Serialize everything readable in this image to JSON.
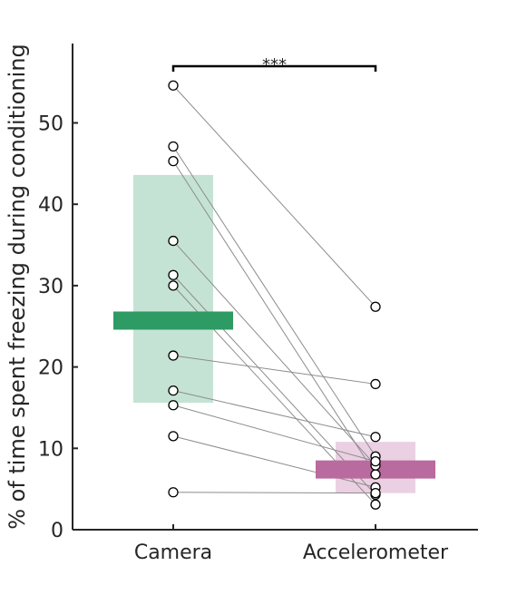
{
  "chart_data": {
    "type": "scatter",
    "title": "",
    "ylabel": "% of time spent freezing during conditioning",
    "xlabel": "",
    "categories": [
      "Camera",
      "Accelerometer"
    ],
    "ylim": [
      0,
      60
    ],
    "yticks": [
      0,
      10,
      20,
      30,
      40,
      50
    ],
    "grid": false,
    "significance": {
      "label": "***",
      "between": [
        "Camera",
        "Accelerometer"
      ]
    },
    "summary": [
      {
        "category": "Camera",
        "mean": 25.7,
        "band_low": 15.6,
        "band_high": 43.6,
        "bar_color": "#2e9a64",
        "band_color": "#c5e3d4"
      },
      {
        "category": "Accelerometer",
        "mean": 7.4,
        "band_low": 4.5,
        "band_high": 10.8,
        "bar_color": "#b96a9e",
        "band_color": "#ead0e2"
      }
    ],
    "pairs": [
      {
        "camera": 54.6,
        "accelerometer": 27.4
      },
      {
        "camera": 47.1,
        "accelerometer": 9.0
      },
      {
        "camera": 45.3,
        "accelerometer": 6.8
      },
      {
        "camera": 35.5,
        "accelerometer": 7.9
      },
      {
        "camera": 31.3,
        "accelerometer": 4.3
      },
      {
        "camera": 30.0,
        "accelerometer": 3.1
      },
      {
        "camera": 21.4,
        "accelerometer": 17.9
      },
      {
        "camera": 17.1,
        "accelerometer": 11.4
      },
      {
        "camera": 15.3,
        "accelerometer": 8.4
      },
      {
        "camera": 11.5,
        "accelerometer": 5.2
      },
      {
        "camera": 4.6,
        "accelerometer": 4.5
      }
    ]
  }
}
